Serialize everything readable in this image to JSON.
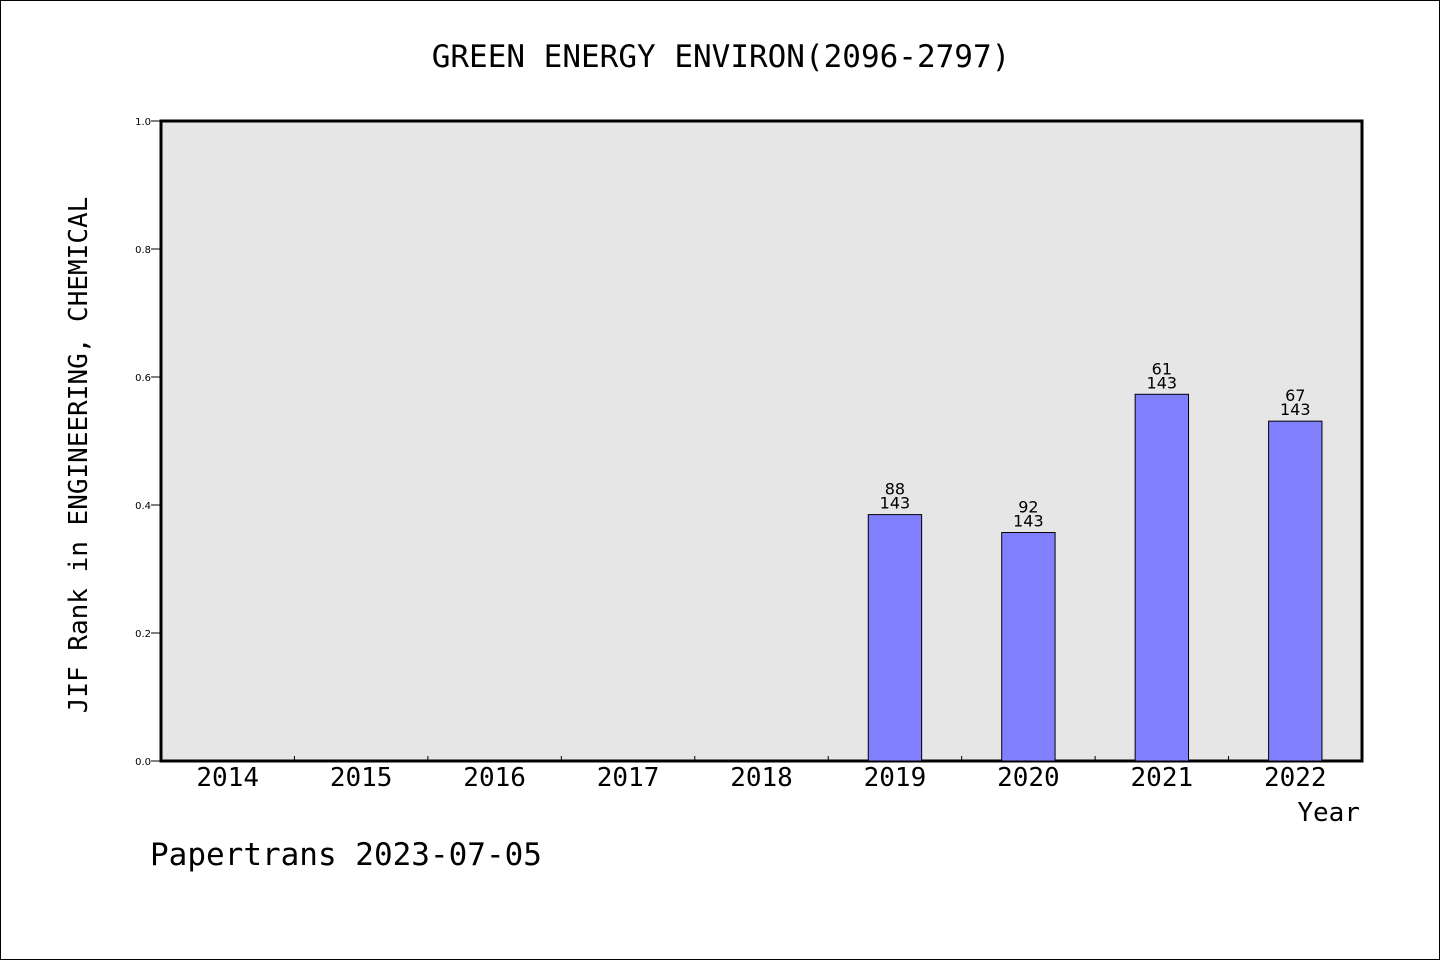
{
  "chart_data": {
    "type": "bar",
    "title": "GREEN ENERGY ENVIRON(2096-2797)",
    "xlabel": "Year",
    "ylabel": "JIF Rank in ENGINEERING, CHEMICAL",
    "ylim": [
      0,
      1.0
    ],
    "yticks": [
      "0.0",
      "0.2",
      "0.4",
      "0.6",
      "0.8",
      "1.0"
    ],
    "categories": [
      "2014",
      "2015",
      "2016",
      "2017",
      "2018",
      "2019",
      "2020",
      "2021",
      "2022"
    ],
    "series": [
      {
        "values": [
          null,
          null,
          null,
          null,
          null,
          0.385,
          0.357,
          0.573,
          0.531
        ],
        "rank": [
          null,
          null,
          null,
          null,
          null,
          "88",
          "92",
          "61",
          "67"
        ],
        "total": [
          null,
          null,
          null,
          null,
          null,
          "143",
          "143",
          "143",
          "143"
        ]
      }
    ],
    "grid": false,
    "colors": {
      "bar": "#8080ff",
      "plot_bg": "#e6e6e6",
      "axis": "#000000"
    }
  },
  "footer": "Papertrans 2023-07-05"
}
